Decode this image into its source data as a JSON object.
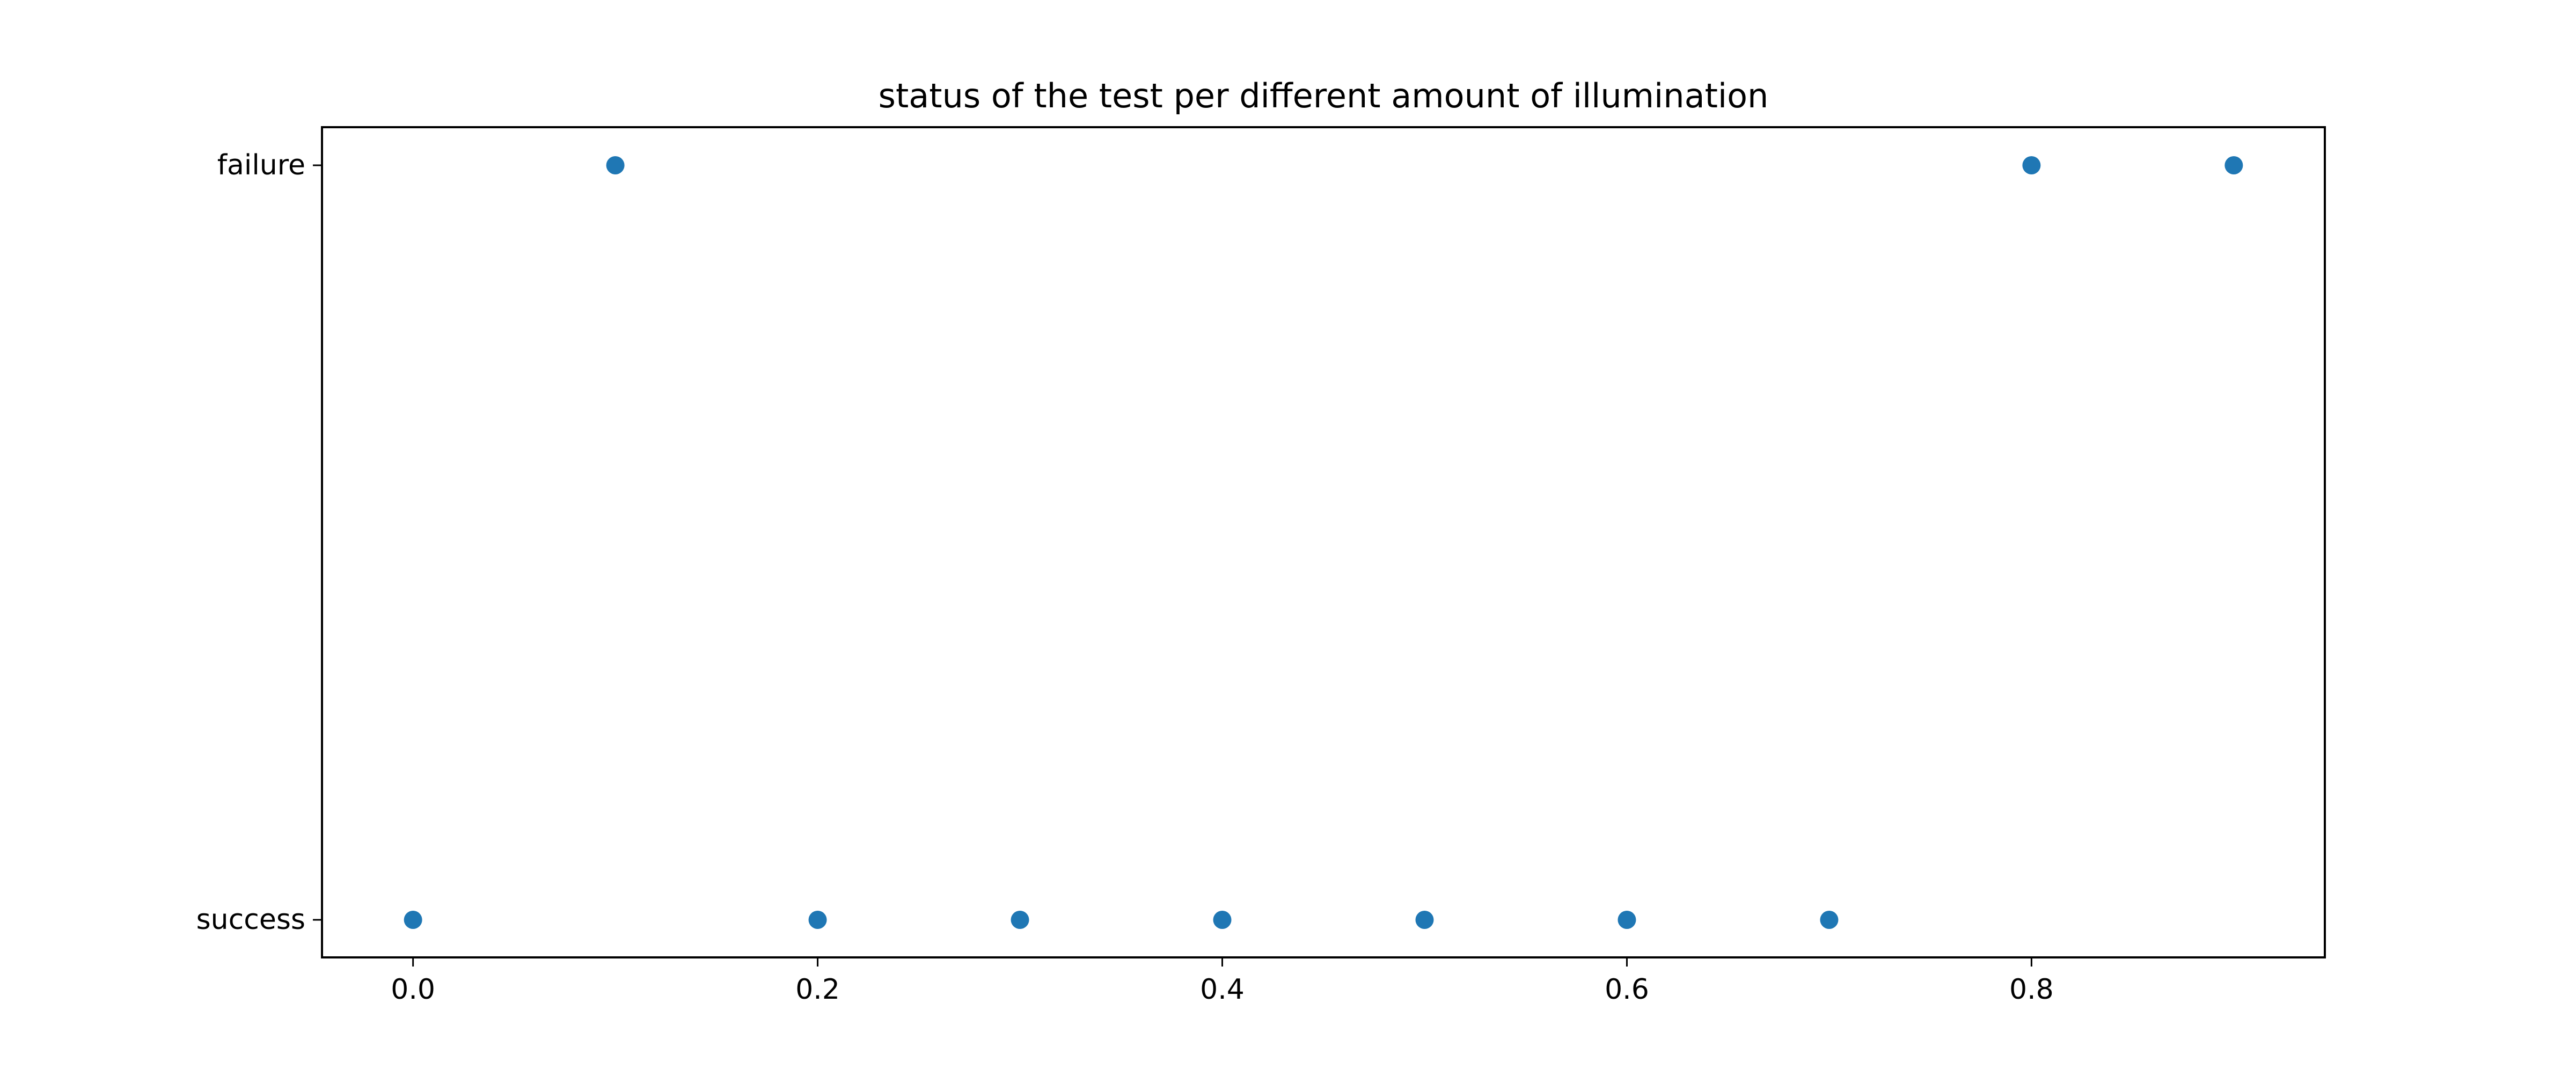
{
  "chart_data": {
    "type": "scatter",
    "title": "status of the test per different amount of illumination",
    "xlabel": "",
    "ylabel": "",
    "x_ticks": [
      "0.0",
      "0.2",
      "0.4",
      "0.6",
      "0.8"
    ],
    "x_tick_values": [
      0.0,
      0.2,
      0.4,
      0.6,
      0.8
    ],
    "y_categories": [
      "success",
      "failure"
    ],
    "xlim": [
      -0.045,
      0.945
    ],
    "grid": false,
    "colors": {
      "marker": "#1f77b4",
      "axes": "#000000",
      "background": "#ffffff"
    },
    "points": [
      {
        "x": 0.0,
        "y": "success"
      },
      {
        "x": 0.1,
        "y": "failure"
      },
      {
        "x": 0.2,
        "y": "success"
      },
      {
        "x": 0.3,
        "y": "success"
      },
      {
        "x": 0.4,
        "y": "success"
      },
      {
        "x": 0.5,
        "y": "success"
      },
      {
        "x": 0.6,
        "y": "success"
      },
      {
        "x": 0.7,
        "y": "success"
      },
      {
        "x": 0.8,
        "y": "failure"
      },
      {
        "x": 0.9,
        "y": "failure"
      }
    ]
  }
}
